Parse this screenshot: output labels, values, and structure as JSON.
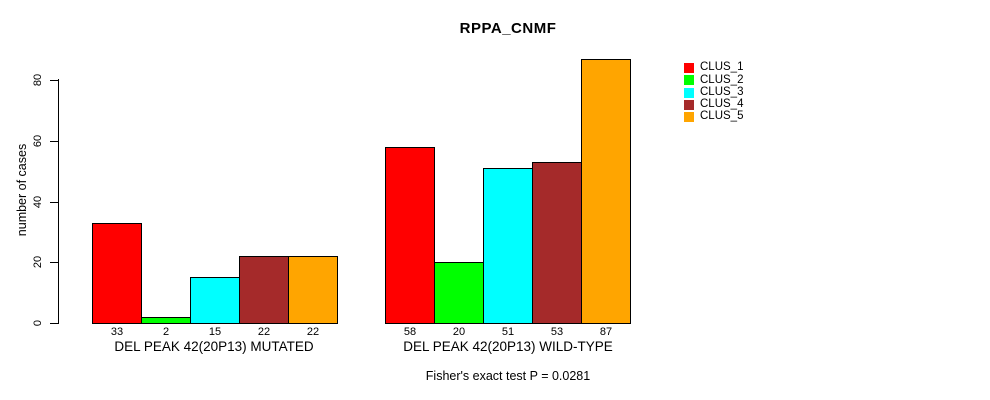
{
  "chart_data": {
    "type": "bar",
    "title": "RPPA_CNMF",
    "subtitle": "Fisher's exact test P = 0.0281",
    "ylabel": "number of cases",
    "xlabel": "",
    "y_axis": {
      "ticks": [
        0,
        20,
        40,
        60,
        80
      ],
      "range": [
        0,
        87
      ]
    },
    "grid": false,
    "legend": {
      "position": "right",
      "entries": [
        "CLUS_1",
        "CLUS_2",
        "CLUS_3",
        "CLUS_4",
        "CLUS_5"
      ]
    },
    "colors": [
      "#ff0000",
      "#00ff00",
      "#00ffff",
      "#a52a2a",
      "#ffa500"
    ],
    "groups": [
      {
        "label": "DEL PEAK 42(20P13) MUTATED",
        "values": [
          33,
          2,
          15,
          22,
          22
        ]
      },
      {
        "label": "DEL PEAK 42(20P13) WILD-TYPE",
        "values": [
          58,
          20,
          51,
          53,
          87
        ]
      }
    ]
  }
}
